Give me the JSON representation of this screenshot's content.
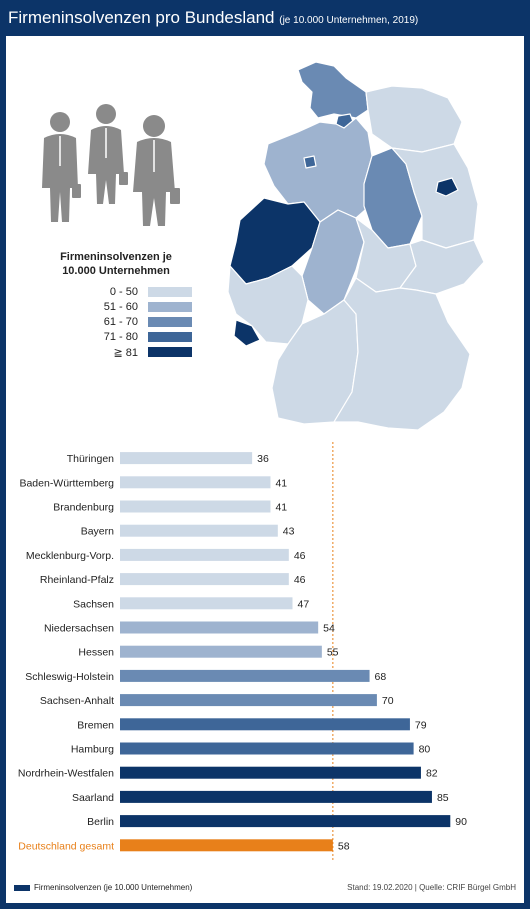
{
  "header": {
    "title": "Firmeninsolvenzen pro Bundesland",
    "subtitle": "(je 10.000 Unternehmen, 2019)"
  },
  "legend": {
    "title_line1": "Firmeninsolvenzen je",
    "title_line2": "10.000 Unternehmen",
    "items": [
      {
        "label": "0 - 50",
        "color": "#cdd9e6"
      },
      {
        "label": "51 - 60",
        "color": "#9eb3cf"
      },
      {
        "label": "61 - 70",
        "color": "#6a8ab3"
      },
      {
        "label": "71 - 80",
        "color": "#3e6698"
      },
      {
        "label": "≧ 81",
        "color": "#0c3468"
      }
    ]
  },
  "icons": [
    "businessman-icon",
    "businesswoman-icon",
    "businesswoman-icon"
  ],
  "chart_data": {
    "type": "bar",
    "orientation": "horizontal",
    "categories": [
      "Thüringen",
      "Baden-Württemberg",
      "Brandenburg",
      "Bayern",
      "Mecklenburg-Vorp.",
      "Rheinland-Pfalz",
      "Sachsen",
      "Niedersachsen",
      "Hessen",
      "Schleswig-Holstein",
      "Sachsen-Anhalt",
      "Bremen",
      "Hamburg",
      "Nordrhein-Westfalen",
      "Saarland",
      "Berlin",
      "Deutschland gesamt"
    ],
    "values": [
      36,
      41,
      41,
      43,
      46,
      46,
      47,
      54,
      55,
      68,
      70,
      79,
      80,
      82,
      85,
      90,
      58
    ],
    "colors": [
      "#cdd9e6",
      "#cdd9e6",
      "#cdd9e6",
      "#cdd9e6",
      "#cdd9e6",
      "#cdd9e6",
      "#cdd9e6",
      "#9eb3cf",
      "#9eb3cf",
      "#6a8ab3",
      "#6a8ab3",
      "#3e6698",
      "#3e6698",
      "#0c3468",
      "#0c3468",
      "#0c3468",
      "#e8801a"
    ],
    "highlight_category_color": "#e8801a",
    "reference_line": 58,
    "xlim": [
      0,
      100
    ],
    "xticks": [
      0,
      10,
      20,
      30,
      40,
      50,
      60,
      70,
      80,
      90
    ],
    "series_name": "Firmeninsolvenzen (je 10.000 Unternehmen)",
    "grid": false
  },
  "footer": {
    "source": "Stand: 19.02.2020 | Quelle: CRIF Bürgel GmbH"
  }
}
